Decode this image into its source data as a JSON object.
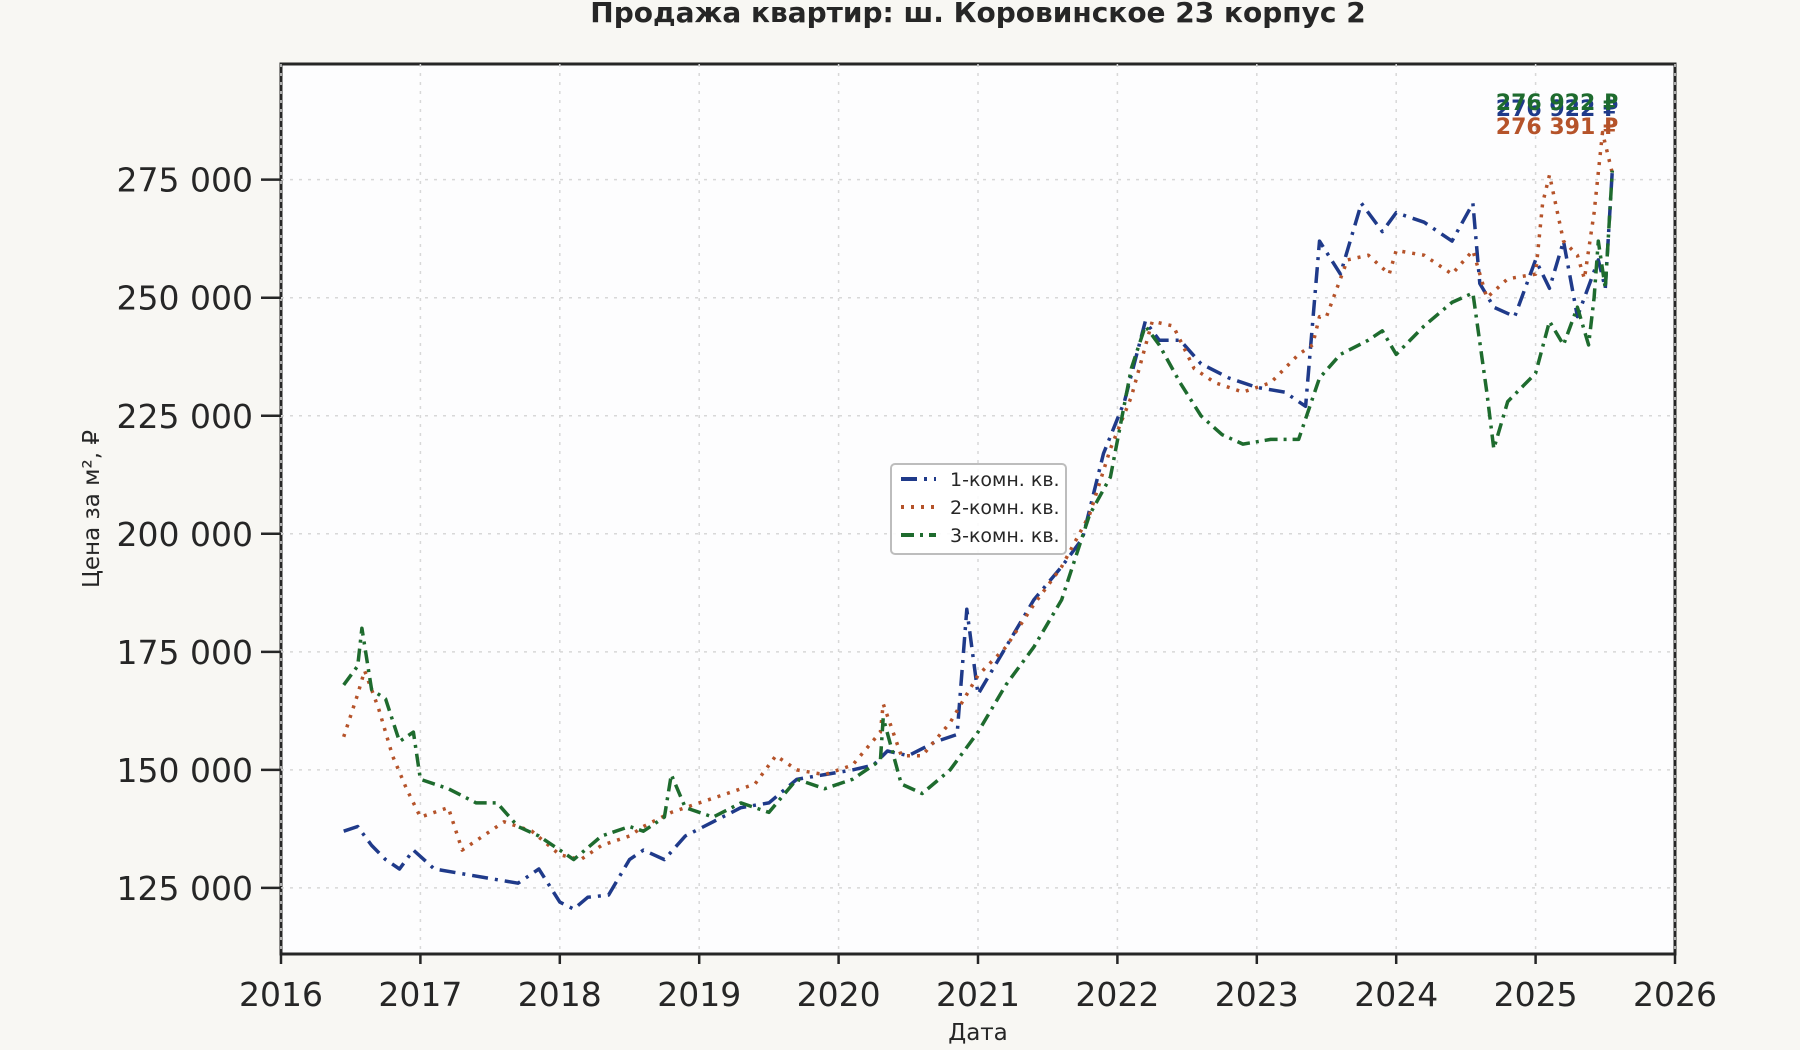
{
  "chart_data": {
    "type": "line",
    "title": "Продажа квартир: ш. Коровинское 23 корпус 2",
    "xlabel": "Дата",
    "ylabel": "Цена за м², ₽",
    "xlim": [
      2016.0,
      2026.0
    ],
    "ylim": [
      111000,
      299500
    ],
    "x_ticks": [
      2016,
      2017,
      2018,
      2019,
      2020,
      2021,
      2022,
      2023,
      2024,
      2025,
      2026
    ],
    "x_tick_labels": [
      "2016",
      "2017",
      "2018",
      "2019",
      "2020",
      "2021",
      "2022",
      "2023",
      "2024",
      "2025",
      "2026"
    ],
    "y_ticks": [
      125000,
      150000,
      175000,
      200000,
      225000,
      250000,
      275000
    ],
    "y_tick_labels": [
      "125 000",
      "150 000",
      "175 000",
      "200 000",
      "225 000",
      "250 000",
      "275 000"
    ],
    "grid": true,
    "legend_position": "center",
    "series": [
      {
        "name": "1-комн. кв.",
        "color": "#1f3a8a",
        "dash": "dashdot",
        "end_label": "276 922 ₽",
        "x": [
          2016.45,
          2016.55,
          2016.65,
          2016.75,
          2016.85,
          2016.95,
          2017.1,
          2017.3,
          2017.5,
          2017.7,
          2017.85,
          2018.0,
          2018.1,
          2018.2,
          2018.35,
          2018.5,
          2018.6,
          2018.75,
          2018.9,
          2019.1,
          2019.3,
          2019.5,
          2019.7,
          2019.9,
          2020.1,
          2020.25,
          2020.35,
          2020.5,
          2020.7,
          2020.85,
          2020.92,
          2021.0,
          2021.2,
          2021.4,
          2021.6,
          2021.75,
          2021.9,
          2022.05,
          2022.2,
          2022.3,
          2022.45,
          2022.6,
          2022.8,
          2023.0,
          2023.2,
          2023.35,
          2023.45,
          2023.6,
          2023.75,
          2023.9,
          2024.0,
          2024.2,
          2024.4,
          2024.55,
          2024.6,
          2024.7,
          2024.85,
          2025.0,
          2025.1,
          2025.2,
          2025.3,
          2025.4,
          2025.45,
          2025.5,
          2025.55
        ],
        "y": [
          137000,
          138000,
          134000,
          131000,
          129000,
          133000,
          129000,
          128000,
          127000,
          126000,
          129000,
          122000,
          120500,
          123000,
          123500,
          131000,
          133000,
          131000,
          136000,
          139000,
          142000,
          143000,
          148000,
          149000,
          150000,
          151000,
          154000,
          153000,
          156000,
          157500,
          184000,
          166000,
          176000,
          186000,
          193000,
          199000,
          217000,
          228000,
          245000,
          241000,
          241000,
          236000,
          233000,
          231000,
          230000,
          227000,
          262000,
          255000,
          270000,
          264000,
          268000,
          266000,
          262000,
          270000,
          253000,
          248000,
          246000,
          258000,
          252000,
          262000,
          246000,
          254000,
          258000,
          252000,
          276922
        ]
      },
      {
        "name": "2-комн. кв.",
        "color": "#b5532a",
        "dash": "dotted",
        "end_label": "276 391 ₽",
        "x": [
          2016.45,
          2016.55,
          2016.6,
          2016.7,
          2016.8,
          2016.9,
          2017.0,
          2017.2,
          2017.3,
          2017.45,
          2017.6,
          2017.8,
          2018.0,
          2018.15,
          2018.3,
          2018.5,
          2018.6,
          2018.8,
          2019.0,
          2019.2,
          2019.4,
          2019.55,
          2019.7,
          2019.9,
          2020.1,
          2020.3,
          2020.32,
          2020.45,
          2020.6,
          2020.8,
          2021.0,
          2021.2,
          2021.4,
          2021.6,
          2021.8,
          2021.95,
          2022.1,
          2022.25,
          2022.4,
          2022.55,
          2022.7,
          2022.9,
          2023.1,
          2023.3,
          2023.4,
          2023.45,
          2023.5,
          2023.65,
          2023.8,
          2023.95,
          2024.0,
          2024.2,
          2024.4,
          2024.55,
          2024.65,
          2024.8,
          2025.0,
          2025.05,
          2025.1,
          2025.2,
          2025.3,
          2025.35,
          2025.42,
          2025.48,
          2025.55
        ],
        "y": [
          157000,
          166000,
          171000,
          163000,
          153000,
          146000,
          140000,
          142000,
          133000,
          136000,
          139000,
          137000,
          132000,
          131000,
          134000,
          136000,
          138000,
          141000,
          143000,
          145000,
          147000,
          153000,
          150000,
          149000,
          151000,
          158000,
          164000,
          153000,
          153000,
          160000,
          170000,
          176000,
          185000,
          193000,
          204000,
          218000,
          229000,
          245000,
          244000,
          235000,
          232000,
          230000,
          232000,
          238000,
          240000,
          246000,
          246000,
          258000,
          259000,
          255000,
          260000,
          259000,
          255000,
          260000,
          250000,
          254000,
          255000,
          270000,
          276000,
          262000,
          259000,
          254000,
          268000,
          285000,
          276391
        ]
      },
      {
        "name": "3-комн. кв.",
        "color": "#1e6b2e",
        "dash": "dashdot2",
        "end_label": "276 922 ₽",
        "x": [
          2016.45,
          2016.55,
          2016.58,
          2016.65,
          2016.75,
          2016.85,
          2016.95,
          2017.0,
          2017.2,
          2017.4,
          2017.55,
          2017.7,
          2017.85,
          2018.0,
          2018.1,
          2018.3,
          2018.5,
          2018.6,
          2018.75,
          2018.8,
          2018.9,
          2019.1,
          2019.3,
          2019.5,
          2019.7,
          2019.9,
          2020.1,
          2020.3,
          2020.32,
          2020.45,
          2020.6,
          2020.8,
          2021.0,
          2021.2,
          2021.4,
          2021.6,
          2021.8,
          2021.95,
          2022.1,
          2022.2,
          2022.3,
          2022.45,
          2022.6,
          2022.75,
          2022.9,
          2023.1,
          2023.3,
          2023.45,
          2023.6,
          2023.8,
          2023.9,
          2024.0,
          2024.2,
          2024.4,
          2024.55,
          2024.65,
          2024.7,
          2024.8,
          2025.0,
          2025.1,
          2025.2,
          2025.3,
          2025.38,
          2025.42,
          2025.45,
          2025.5,
          2025.55
        ],
        "y": [
          168000,
          172000,
          180000,
          167000,
          165000,
          156000,
          158000,
          148000,
          146000,
          143000,
          143000,
          138000,
          136000,
          133000,
          131000,
          136000,
          138000,
          137000,
          140000,
          149000,
          142000,
          140000,
          143000,
          141000,
          148000,
          146000,
          148000,
          152000,
          161000,
          147000,
          145000,
          150000,
          158000,
          168000,
          176000,
          186000,
          204000,
          212000,
          235000,
          244000,
          240000,
          232000,
          225000,
          221000,
          219000,
          220000,
          220000,
          233000,
          238000,
          241000,
          243000,
          238000,
          244000,
          249000,
          251000,
          230000,
          218000,
          228000,
          234000,
          245000,
          240000,
          248000,
          240000,
          250000,
          262000,
          252000,
          276922
        ]
      }
    ]
  }
}
